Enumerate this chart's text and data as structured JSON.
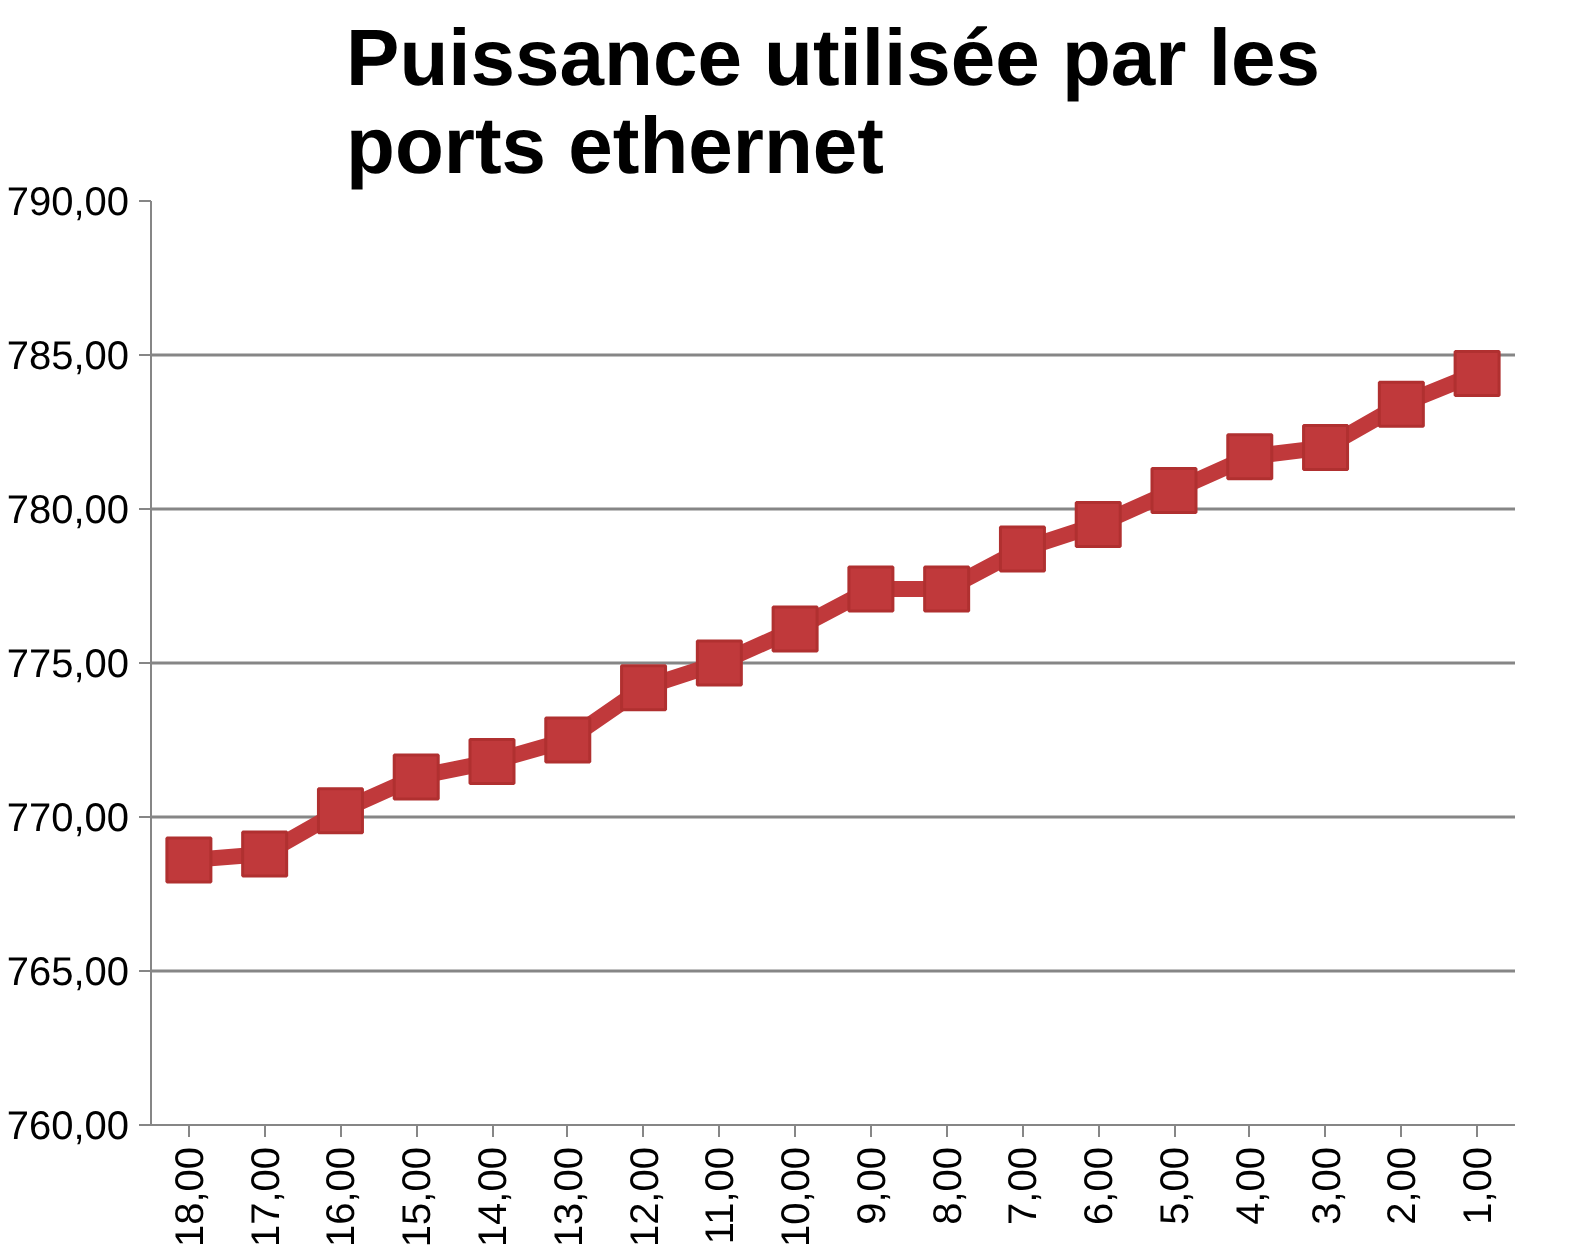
{
  "chart_data": {
    "type": "line",
    "title": "Puissance utilisée par les ports ethernet",
    "categories": [
      "18,00",
      "17,00",
      "16,00",
      "15,00",
      "14,00",
      "13,00",
      "12,00",
      "11,00",
      "10,00",
      "9,00",
      "8,00",
      "7,00",
      "6,00",
      "5,00",
      "4,00",
      "3,00",
      "2,00",
      "1,00"
    ],
    "series": [
      {
        "color": "#c0393b",
        "values": [
          768.6,
          768.8,
          770.2,
          771.3,
          771.8,
          772.5,
          774.2,
          775.0,
          776.1,
          777.4,
          777.4,
          778.7,
          779.5,
          780.6,
          781.7,
          782.0,
          783.4,
          784.4
        ]
      }
    ],
    "ylim": [
      760,
      790
    ],
    "yticks": [
      {
        "value": 760,
        "label": "760,00"
      },
      {
        "value": 765,
        "label": "765,00"
      },
      {
        "value": 770,
        "label": "770,00"
      },
      {
        "value": 775,
        "label": "775,00"
      },
      {
        "value": 780,
        "label": "780,00"
      },
      {
        "value": 785,
        "label": "785,00"
      },
      {
        "value": 790,
        "label": "790,00"
      }
    ],
    "grid": "y",
    "marker": "square",
    "line_style": "solid"
  }
}
